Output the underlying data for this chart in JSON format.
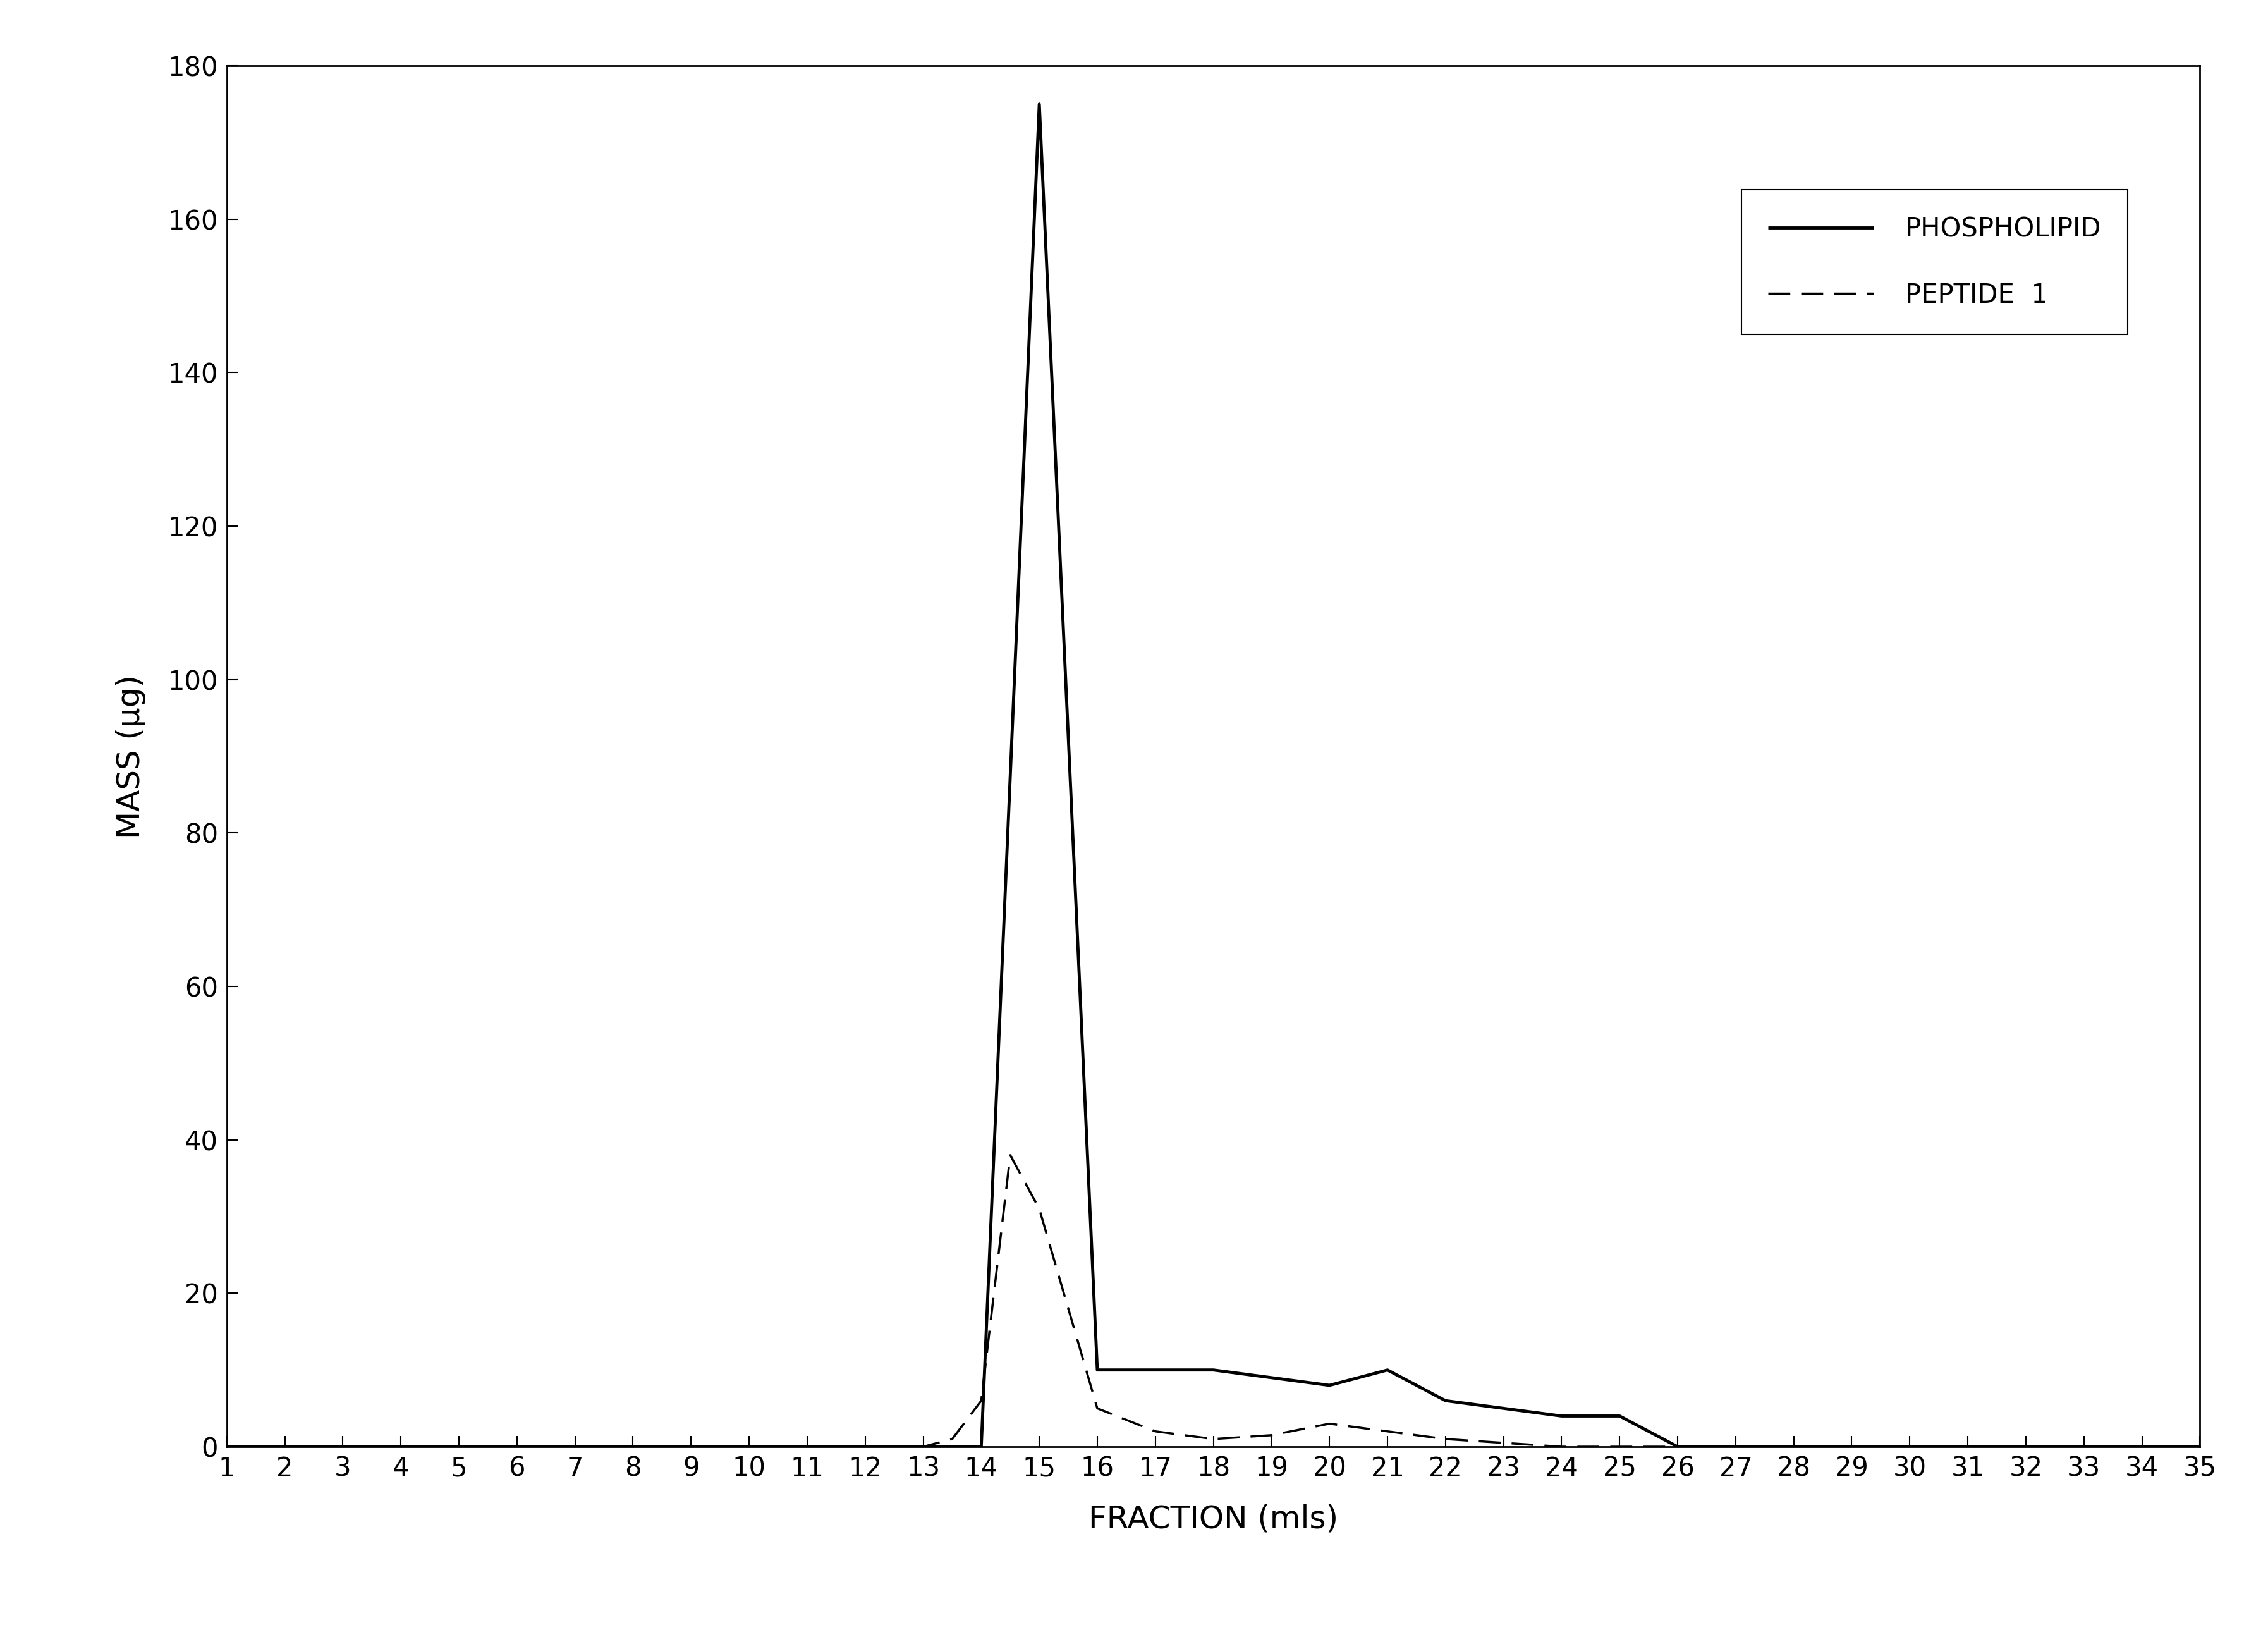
{
  "phospholipid_x": [
    1,
    2,
    3,
    4,
    5,
    6,
    7,
    8,
    9,
    10,
    11,
    12,
    13,
    13.5,
    14,
    15,
    16,
    17,
    18,
    19,
    20,
    21,
    22,
    23,
    24,
    25,
    26,
    27,
    28,
    29,
    30,
    31,
    32,
    33,
    34,
    35
  ],
  "phospholipid_y": [
    0,
    0,
    0,
    0,
    0,
    0,
    0,
    0,
    0,
    0,
    0,
    0,
    0,
    0,
    0,
    175,
    10,
    10,
    10,
    9,
    8,
    10,
    6,
    5,
    4,
    4,
    0,
    0,
    0,
    0,
    0,
    0,
    0,
    0,
    0,
    0
  ],
  "peptide_x": [
    1,
    2,
    3,
    4,
    5,
    6,
    7,
    8,
    9,
    10,
    11,
    12,
    13,
    13.5,
    14,
    14.5,
    15,
    16,
    17,
    18,
    19,
    20,
    21,
    22,
    23,
    24,
    25,
    26,
    27,
    28,
    29,
    30,
    31,
    32,
    33,
    34,
    35
  ],
  "peptide_y": [
    0,
    0,
    0,
    0,
    0,
    0,
    0,
    0,
    0,
    0,
    0,
    0,
    0,
    1,
    6,
    38,
    31,
    5,
    2,
    1,
    1.5,
    3,
    2,
    1,
    0.5,
    0,
    0,
    0,
    0,
    0,
    0,
    0,
    0,
    0,
    0,
    0,
    0
  ],
  "xlabel": "FRACTION (mls)",
  "ylabel": "MASS (μg)",
  "ylim": [
    0,
    180
  ],
  "xlim": [
    1,
    35
  ],
  "yticks": [
    0,
    20,
    40,
    60,
    80,
    100,
    120,
    140,
    160,
    180
  ],
  "xticks": [
    1,
    2,
    3,
    4,
    5,
    6,
    7,
    8,
    9,
    10,
    11,
    12,
    13,
    14,
    15,
    16,
    17,
    18,
    19,
    20,
    21,
    22,
    23,
    24,
    25,
    26,
    27,
    28,
    29,
    30,
    31,
    32,
    33,
    34,
    35
  ],
  "legend_phospholipid": "PHOSPHOLIPID",
  "legend_peptide": "PEPTIDE  1",
  "line_color": "#000000",
  "background_color": "#ffffff",
  "phospholipid_linewidth": 3.5,
  "peptide_linewidth": 2.5,
  "title_fontsize": 32,
  "label_fontsize": 36,
  "tick_fontsize": 30,
  "legend_fontsize": 30
}
